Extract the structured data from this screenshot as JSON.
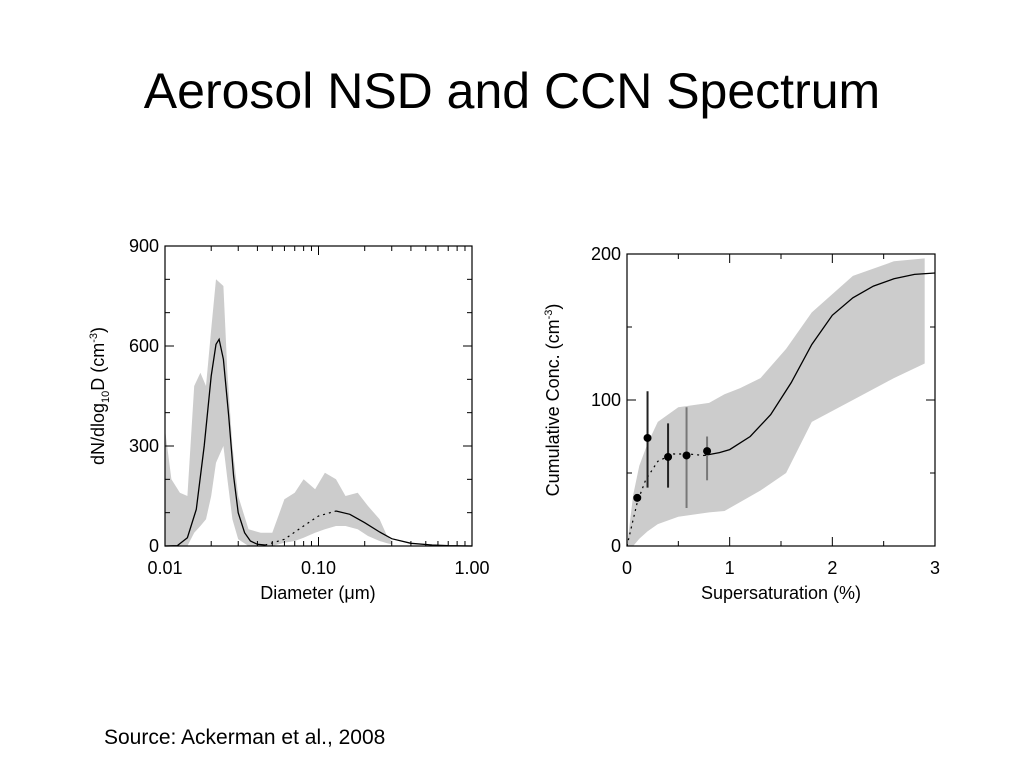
{
  "slide": {
    "title": "Aerosol NSD and CCN Spectrum",
    "source": "Source:  Ackerman et al., 2008"
  },
  "chart_data": [
    {
      "type": "line",
      "name": "nsd",
      "xlabel_pre": "Diameter (",
      "xlabel_mu": "μ",
      "xlabel_post": "m)",
      "ylabel_a": "dN/dlog",
      "ylabel_sub": "10",
      "ylabel_b": "D (cm",
      "ylabel_sup": "-3",
      "ylabel_c": ")",
      "xscale": "log",
      "xlim": [
        0.01,
        1.0
      ],
      "ylim": [
        0,
        900
      ],
      "xticks": [
        0.01,
        0.1,
        1.0
      ],
      "xtick_labels": [
        "0.01",
        "0.10",
        "1.00"
      ],
      "yticks": [
        0,
        300,
        600,
        900
      ],
      "ytick_labels": [
        "0",
        "300",
        "600",
        "900"
      ],
      "band": [
        [
          0.01,
          0,
          350
        ],
        [
          0.011,
          0,
          200
        ],
        [
          0.0125,
          0,
          160
        ],
        [
          0.014,
          0,
          150
        ],
        [
          0.0155,
          40,
          480
        ],
        [
          0.017,
          60,
          520
        ],
        [
          0.0185,
          80,
          480
        ],
        [
          0.02,
          150,
          650
        ],
        [
          0.0215,
          250,
          800
        ],
        [
          0.024,
          300,
          780
        ],
        [
          0.0255,
          200,
          520
        ],
        [
          0.0275,
          80,
          300
        ],
        [
          0.03,
          20,
          150
        ],
        [
          0.035,
          0,
          50
        ],
        [
          0.042,
          0,
          40
        ],
        [
          0.05,
          0,
          40
        ],
        [
          0.06,
          10,
          140
        ],
        [
          0.07,
          15,
          160
        ],
        [
          0.08,
          25,
          200
        ],
        [
          0.095,
          40,
          170
        ],
        [
          0.11,
          50,
          220
        ],
        [
          0.13,
          60,
          200
        ],
        [
          0.15,
          60,
          150
        ],
        [
          0.18,
          50,
          160
        ],
        [
          0.21,
          30,
          120
        ],
        [
          0.25,
          15,
          80
        ],
        [
          0.28,
          8,
          30
        ],
        [
          0.3,
          5,
          15
        ]
      ],
      "curve": [
        [
          0.01,
          0
        ],
        [
          0.012,
          1
        ],
        [
          0.014,
          25
        ],
        [
          0.016,
          110
        ],
        [
          0.018,
          300
        ],
        [
          0.02,
          510
        ],
        [
          0.0215,
          605
        ],
        [
          0.0225,
          620
        ],
        [
          0.024,
          560
        ],
        [
          0.026,
          390
        ],
        [
          0.028,
          210
        ],
        [
          0.03,
          100
        ],
        [
          0.033,
          40
        ],
        [
          0.036,
          15
        ],
        [
          0.04,
          5
        ],
        [
          0.045,
          3
        ]
      ],
      "dotted": [
        [
          0.045,
          3
        ],
        [
          0.06,
          20
        ],
        [
          0.08,
          60
        ],
        [
          0.1,
          90
        ],
        [
          0.13,
          105
        ]
      ],
      "tail": [
        [
          0.13,
          105
        ],
        [
          0.16,
          95
        ],
        [
          0.2,
          70
        ],
        [
          0.25,
          42
        ],
        [
          0.3,
          22
        ],
        [
          0.4,
          8
        ],
        [
          0.55,
          3
        ],
        [
          0.7,
          1
        ],
        [
          1.0,
          0
        ]
      ]
    },
    {
      "type": "line",
      "name": "ccn",
      "xlabel": "Supersaturation (%)",
      "ylabel_a": "Cumulative Conc. (cm",
      "ylabel_sup": "-3",
      "ylabel_c": ")",
      "xlim": [
        0,
        3
      ],
      "ylim": [
        0,
        200
      ],
      "xticks": [
        0,
        1,
        2,
        3
      ],
      "xtick_labels": [
        "0",
        "1",
        "2",
        "3"
      ],
      "yticks": [
        0,
        100,
        200
      ],
      "ytick_labels": [
        "0",
        "100",
        "200"
      ],
      "band": [
        [
          0.0,
          0,
          0
        ],
        [
          0.06,
          0,
          35
        ],
        [
          0.12,
          5,
          55
        ],
        [
          0.2,
          10,
          70
        ],
        [
          0.3,
          15,
          85
        ],
        [
          0.5,
          20,
          95
        ],
        [
          0.8,
          23,
          98
        ],
        [
          0.95,
          24,
          104
        ],
        [
          1.1,
          30,
          108
        ],
        [
          1.3,
          38,
          115
        ],
        [
          1.55,
          50,
          135
        ],
        [
          1.8,
          85,
          160
        ],
        [
          2.2,
          100,
          185
        ],
        [
          2.6,
          115,
          195
        ],
        [
          2.9,
          125,
          197
        ]
      ],
      "curve": [
        [
          0.75,
          62
        ],
        [
          0.9,
          64
        ],
        [
          1.0,
          66
        ],
        [
          1.2,
          75
        ],
        [
          1.4,
          90
        ],
        [
          1.6,
          112
        ],
        [
          1.8,
          138
        ],
        [
          2.0,
          158
        ],
        [
          2.2,
          170
        ],
        [
          2.4,
          178
        ],
        [
          2.6,
          183
        ],
        [
          2.8,
          186
        ],
        [
          3.0,
          187
        ]
      ],
      "dotted": [
        [
          0.0,
          0
        ],
        [
          0.05,
          15
        ],
        [
          0.1,
          30
        ],
        [
          0.18,
          45
        ],
        [
          0.3,
          58
        ],
        [
          0.45,
          63
        ],
        [
          0.6,
          63
        ],
        [
          0.75,
          62
        ]
      ],
      "points": [
        [
          0.1,
          33,
          33,
          33
        ],
        [
          0.2,
          74,
          40,
          106
        ],
        [
          0.4,
          61,
          40,
          84
        ],
        [
          0.58,
          62,
          26,
          95
        ],
        [
          0.78,
          65,
          45,
          75
        ]
      ],
      "gray_errbars": [
        3,
        4
      ]
    }
  ]
}
